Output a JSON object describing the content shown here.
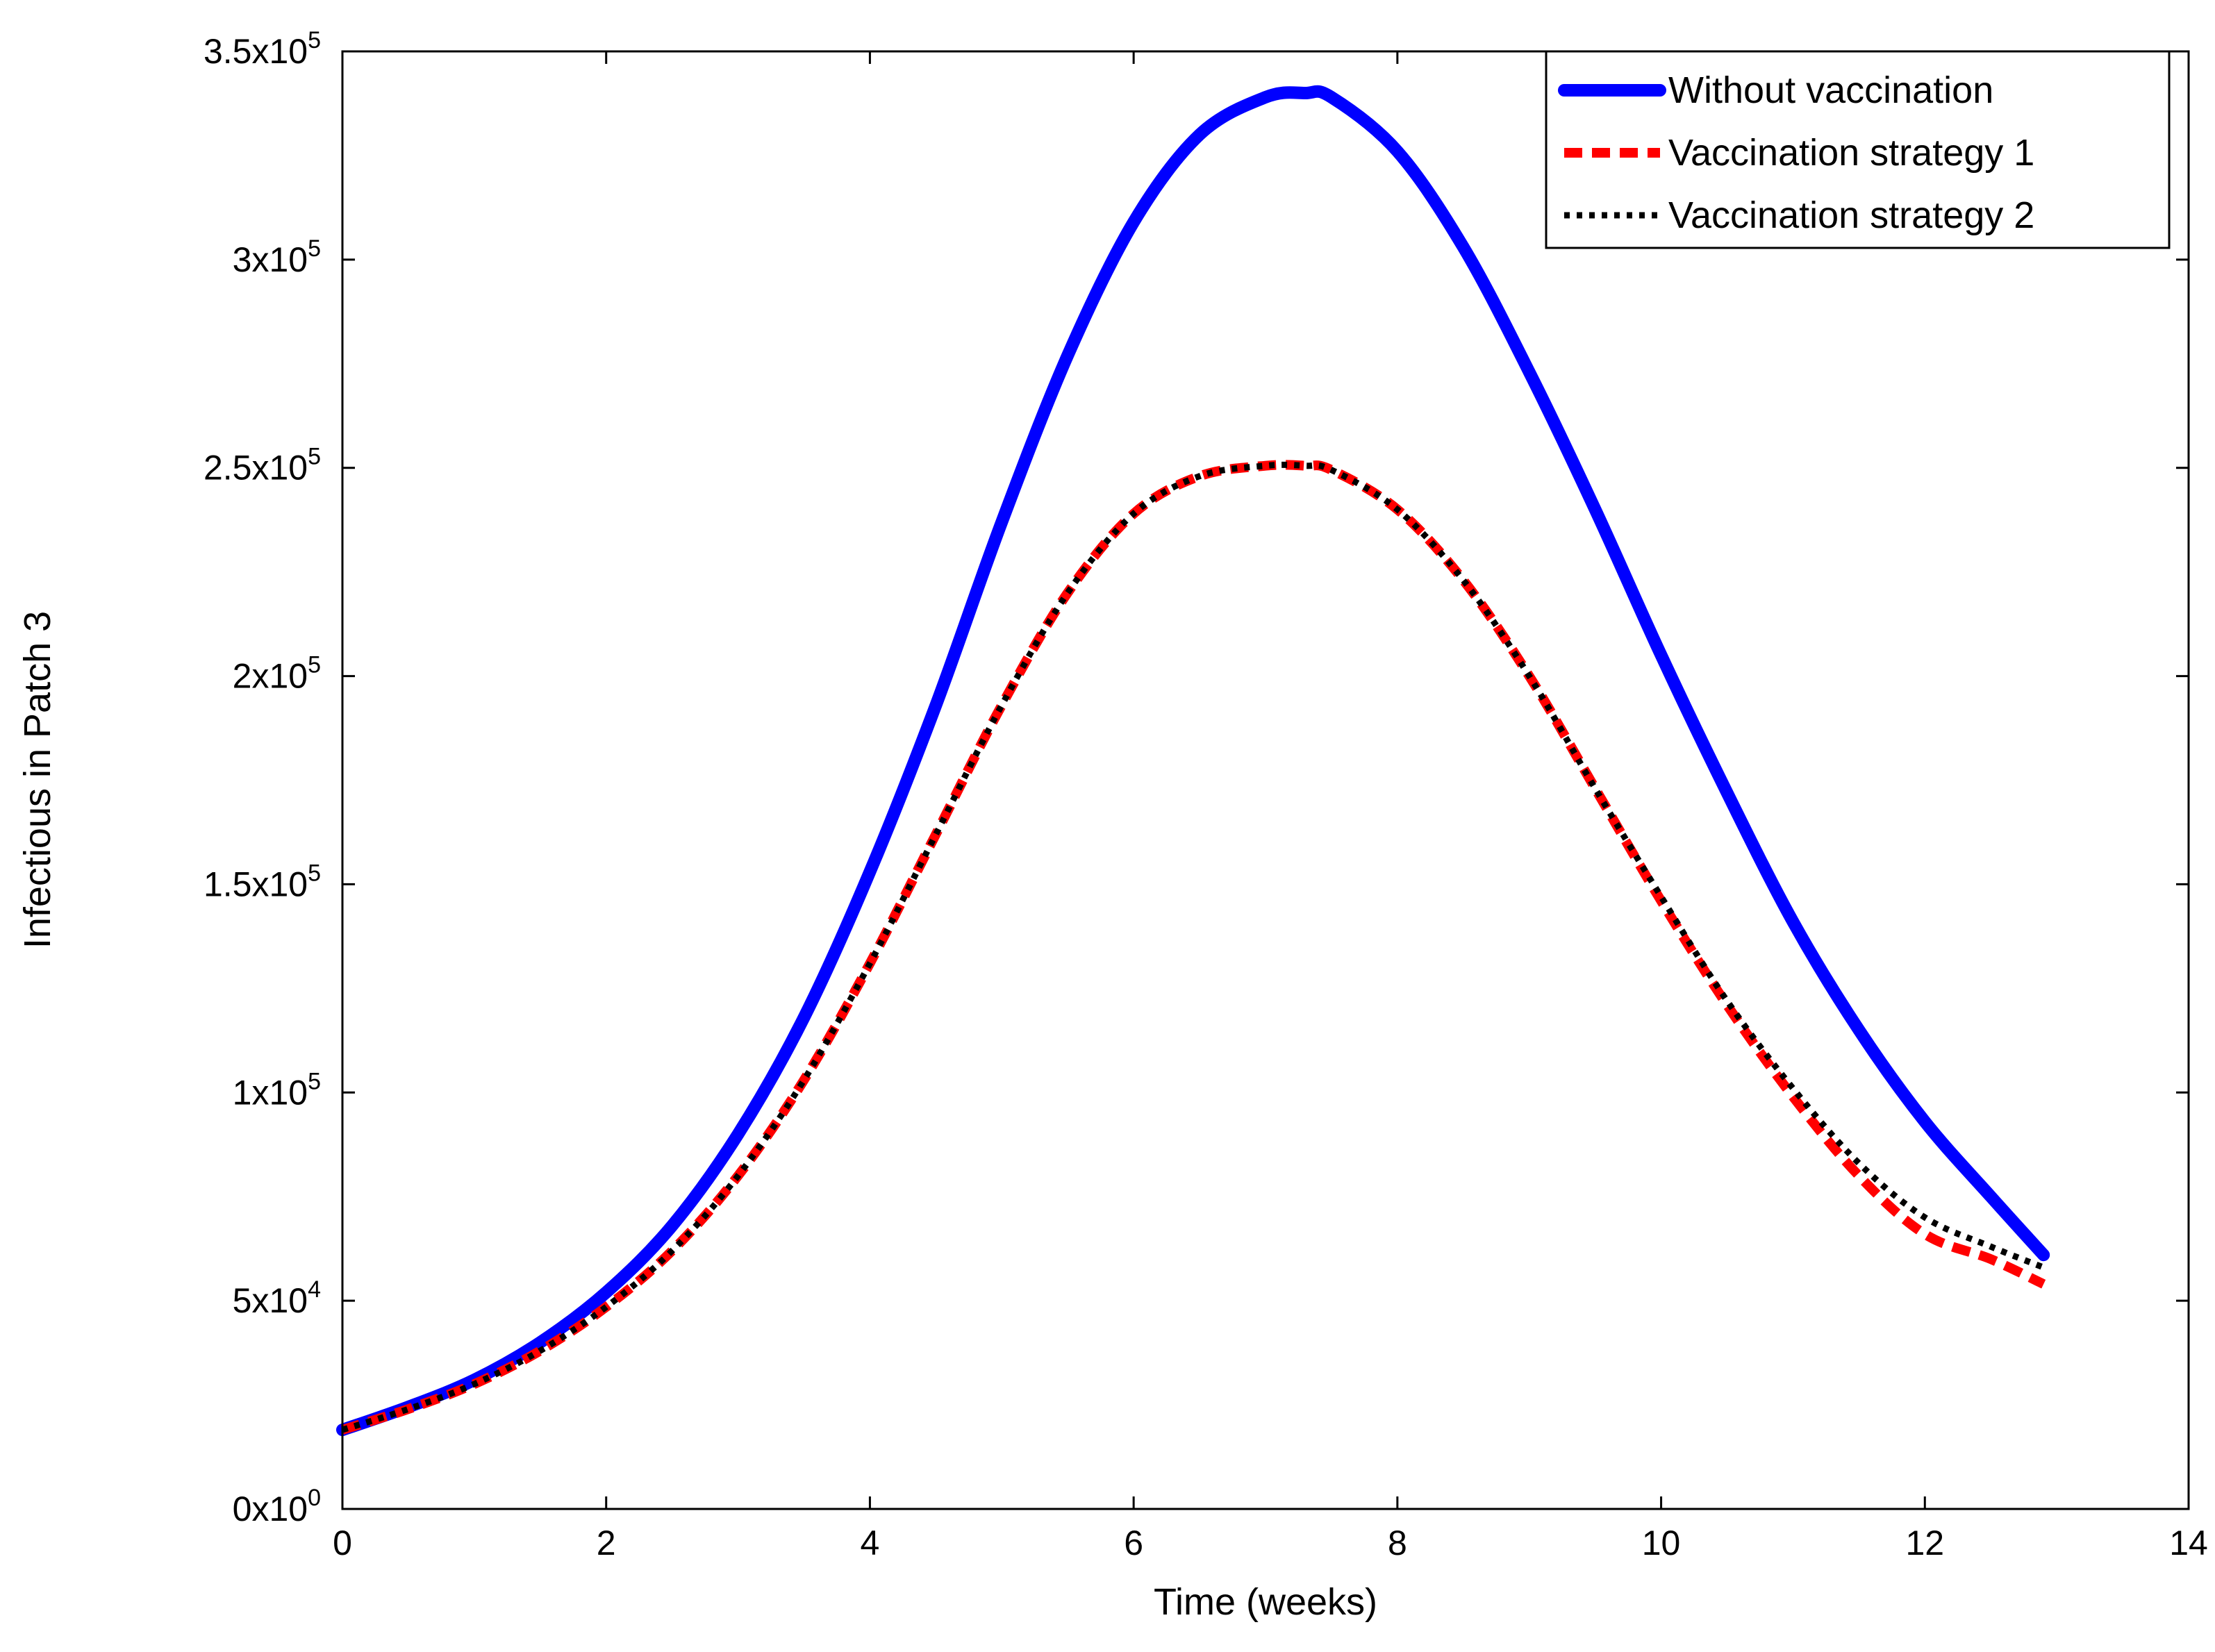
{
  "chart_data": {
    "type": "line",
    "title": "",
    "xlabel": "Time (weeks)",
    "ylabel": "Infectious in Patch 3",
    "xlim": [
      0,
      14
    ],
    "ylim": [
      0,
      350000
    ],
    "grid": false,
    "legend_position": "top-right",
    "x_ticks": [
      "0",
      "2",
      "4",
      "6",
      "8",
      "10",
      "12",
      "14"
    ],
    "y_ticks": [
      {
        "mantissa": "0x10",
        "exp": "0"
      },
      {
        "mantissa": "5x10",
        "exp": "4"
      },
      {
        "mantissa": "1x10",
        "exp": "5"
      },
      {
        "mantissa": "1.5x10",
        "exp": "5"
      },
      {
        "mantissa": "2x10",
        "exp": "5"
      },
      {
        "mantissa": "2.5x10",
        "exp": "5"
      },
      {
        "mantissa": "3x10",
        "exp": "5"
      },
      {
        "mantissa": "3.5x10",
        "exp": "5"
      }
    ],
    "x": [
      0,
      0.5,
      1,
      1.5,
      2,
      2.5,
      3,
      3.5,
      4,
      4.5,
      5,
      5.5,
      6,
      6.5,
      7,
      7.3,
      7.5,
      8,
      8.5,
      9,
      9.5,
      10,
      10.5,
      11,
      11.5,
      12,
      12.5,
      12.9
    ],
    "series": [
      {
        "name": "Without vaccination",
        "color": "#0000ff",
        "style": "solid",
        "values": [
          19000,
          24500,
          31000,
          40000,
          52000,
          68000,
          90000,
          118000,
          153000,
          193000,
          237000,
          277000,
          309000,
          330000,
          339000,
          340000,
          339000,
          326000,
          303000,
          273000,
          240000,
          205000,
          172000,
          141000,
          115000,
          93000,
          75000,
          61000
        ]
      },
      {
        "name": "Vaccination strategy 1",
        "color": "#ff0000",
        "style": "dashed",
        "values": [
          19000,
          24000,
          30000,
          38000,
          48500,
          62000,
          80000,
          103000,
          131000,
          162000,
          193000,
          220000,
          239000,
          248000,
          250500,
          250500,
          249500,
          240000,
          223000,
          200000,
          173000,
          146000,
          121000,
          99000,
          80000,
          66000,
          60000,
          54000
        ]
      },
      {
        "name": "Vaccination strategy 2",
        "color": "#000000",
        "style": "dotted",
        "values": [
          19000,
          24000,
          30000,
          38000,
          48500,
          62000,
          80000,
          103000,
          131000,
          162000,
          193000,
          220000,
          239000,
          248000,
          250500,
          250500,
          249500,
          240000,
          223000,
          200000,
          173000,
          147000,
          122000,
          101000,
          83000,
          70000,
          63000,
          58000
        ]
      }
    ]
  }
}
